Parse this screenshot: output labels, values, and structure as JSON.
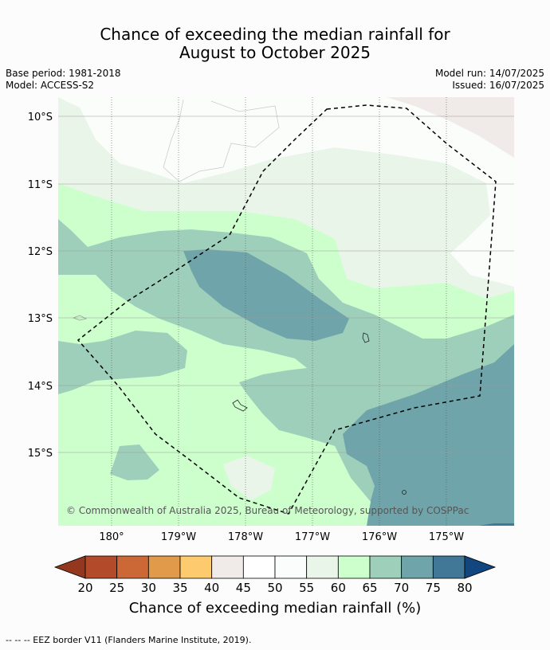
{
  "title_line1": "Chance of exceeding the median rainfall for",
  "title_line2": "August to October 2025",
  "base_period": "Base period: 1981-2018",
  "model": "Model: ACCESS-S2",
  "model_run": "Model run: 14/07/2025",
  "issued": "Issued: 16/07/2025",
  "lat_labels": [
    "10°S",
    "11°S",
    "12°S",
    "13°S",
    "14°S",
    "15°S"
  ],
  "lon_labels": [
    "180°",
    "179°W",
    "178°W",
    "177°W",
    "176°W",
    "175°W"
  ],
  "copyright": "© Commonwealth of Australia 2025, Bureau of Meteorology, supported by COSPPac",
  "colorbar": {
    "ticks": [
      "20",
      "25",
      "30",
      "35",
      "40",
      "45",
      "50",
      "55",
      "60",
      "65",
      "70",
      "75",
      "80"
    ],
    "colors": [
      "#b34a2a",
      "#cb6835",
      "#e09a4a",
      "#fdcb6e",
      "#f0ebe8",
      "#ffffff",
      "#fbfdfc",
      "#eaf5ea",
      "#ccffcc",
      "#9dcfbb",
      "#6fa5aa",
      "#417897"
    ],
    "under_color": "#93381f",
    "over_color": "#12467f",
    "label": "Chance of exceeding median rainfall (%)"
  },
  "map_colors": {
    "c45_50": "#ffffff",
    "c50_55": "#fbfdfb",
    "c55_60": "#eaf5ea",
    "c60_65": "#ccffcc",
    "c65_70": "#9dcfbb",
    "c70_75": "#6fa5aa",
    "c75_80": "#417897",
    "c40_45": "#f0ebe8"
  },
  "footer": "--  --  -- EEZ border V11 (Flanders Marine Institute, 2019)."
}
